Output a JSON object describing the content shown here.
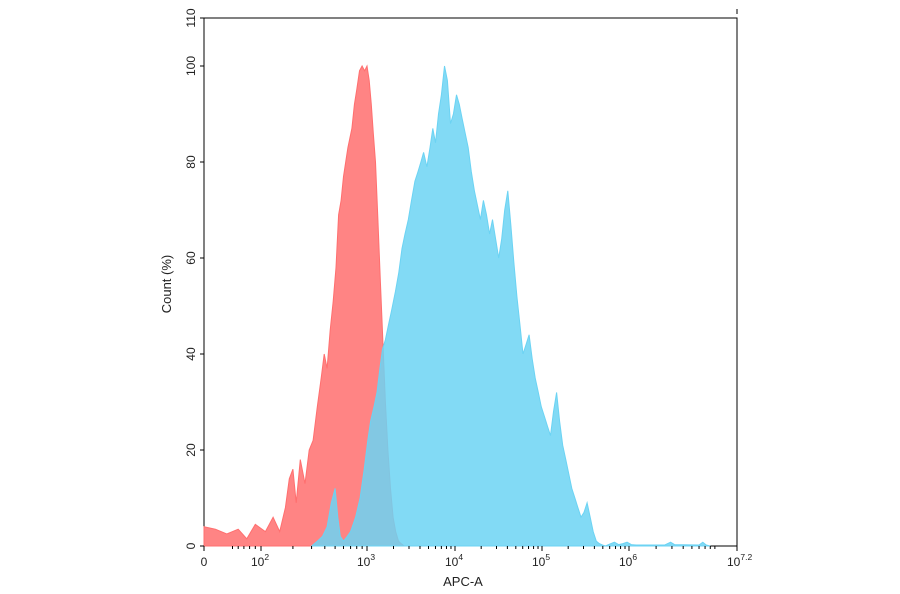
{
  "chart_data": {
    "type": "area",
    "title": "",
    "xlabel": "APC-A",
    "ylabel": "Count (%)",
    "x_scale": "biexponential",
    "xlim_labels": [
      "0",
      "10^7.2"
    ],
    "ylim": [
      0,
      110
    ],
    "grid": false,
    "legend": "none",
    "y_ticks": [
      0,
      20,
      40,
      60,
      80,
      100,
      110
    ],
    "x_ticks": [
      {
        "value": 0,
        "base": "0",
        "exp": ""
      },
      {
        "value": 100,
        "base": "10",
        "exp": "2"
      },
      {
        "value": 1000,
        "base": "10",
        "exp": "3"
      },
      {
        "value": 10000,
        "base": "10",
        "exp": "4"
      },
      {
        "value": 100000,
        "base": "10",
        "exp": "5"
      },
      {
        "value": 1000000,
        "base": "10",
        "exp": "6"
      },
      {
        "value": 15848932,
        "base": "10",
        "exp": "7.2"
      }
    ],
    "series": [
      {
        "color": "#ff6f6f",
        "opacity": 0.85,
        "points": [
          [
            0,
            4
          ],
          [
            20,
            3.5
          ],
          [
            40,
            2.5
          ],
          [
            60,
            3.5
          ],
          [
            75,
            1.5
          ],
          [
            90,
            4.5
          ],
          [
            110,
            3
          ],
          [
            130,
            6
          ],
          [
            150,
            3
          ],
          [
            170,
            8
          ],
          [
            185,
            14
          ],
          [
            200,
            16
          ],
          [
            215,
            9
          ],
          [
            235,
            18
          ],
          [
            260,
            13
          ],
          [
            285,
            20
          ],
          [
            310,
            22
          ],
          [
            340,
            29
          ],
          [
            370,
            35
          ],
          [
            395,
            40
          ],
          [
            420,
            37
          ],
          [
            450,
            45
          ],
          [
            480,
            51
          ],
          [
            510,
            58
          ],
          [
            540,
            69
          ],
          [
            570,
            72
          ],
          [
            600,
            77
          ],
          [
            630,
            80
          ],
          [
            660,
            83
          ],
          [
            690,
            85
          ],
          [
            720,
            87
          ],
          [
            760,
            92
          ],
          [
            800,
            95
          ],
          [
            850,
            99
          ],
          [
            900,
            100
          ],
          [
            950,
            99
          ],
          [
            1000,
            100
          ],
          [
            1060,
            97
          ],
          [
            1120,
            92
          ],
          [
            1180,
            86
          ],
          [
            1250,
            80
          ],
          [
            1330,
            68
          ],
          [
            1420,
            55
          ],
          [
            1520,
            42
          ],
          [
            1620,
            30
          ],
          [
            1730,
            20
          ],
          [
            1850,
            12
          ],
          [
            1980,
            6
          ],
          [
            2120,
            3
          ],
          [
            2280,
            1
          ],
          [
            2450,
            0.5
          ],
          [
            2650,
            0
          ]
        ]
      },
      {
        "color": "#6cd3f3",
        "opacity": 0.85,
        "points": [
          [
            300,
            0
          ],
          [
            340,
            1
          ],
          [
            380,
            2
          ],
          [
            420,
            4
          ],
          [
            460,
            9
          ],
          [
            500,
            12
          ],
          [
            530,
            6
          ],
          [
            560,
            2
          ],
          [
            600,
            1
          ],
          [
            650,
            2
          ],
          [
            700,
            3
          ],
          [
            780,
            6
          ],
          [
            860,
            10
          ],
          [
            940,
            16
          ],
          [
            1020,
            22
          ],
          [
            1100,
            26
          ],
          [
            1200,
            29
          ],
          [
            1300,
            32
          ],
          [
            1400,
            37
          ],
          [
            1500,
            41
          ],
          [
            1620,
            43
          ],
          [
            1750,
            46
          ],
          [
            1900,
            49
          ],
          [
            2100,
            53
          ],
          [
            2300,
            57
          ],
          [
            2500,
            62
          ],
          [
            2700,
            65
          ],
          [
            2950,
            68
          ],
          [
            3200,
            72
          ],
          [
            3500,
            76
          ],
          [
            3800,
            78
          ],
          [
            4100,
            80
          ],
          [
            4400,
            82
          ],
          [
            4800,
            79
          ],
          [
            5200,
            83
          ],
          [
            5600,
            87
          ],
          [
            6000,
            84
          ],
          [
            6500,
            90
          ],
          [
            7000,
            94
          ],
          [
            7600,
            100
          ],
          [
            8200,
            97
          ],
          [
            8900,
            88
          ],
          [
            9600,
            90
          ],
          [
            10400,
            94
          ],
          [
            11200,
            92
          ],
          [
            12100,
            89
          ],
          [
            13100,
            86
          ],
          [
            14200,
            83
          ],
          [
            15400,
            78
          ],
          [
            16700,
            74
          ],
          [
            18100,
            71
          ],
          [
            19600,
            68
          ],
          [
            21200,
            72
          ],
          [
            23000,
            69
          ],
          [
            25000,
            65
          ],
          [
            27000,
            68
          ],
          [
            29300,
            64
          ],
          [
            31800,
            60
          ],
          [
            34400,
            64
          ],
          [
            37300,
            70
          ],
          [
            40400,
            74
          ],
          [
            43800,
            67
          ],
          [
            47500,
            59
          ],
          [
            51500,
            52
          ],
          [
            55800,
            46
          ],
          [
            60500,
            40
          ],
          [
            65600,
            42
          ],
          [
            71100,
            44
          ],
          [
            77100,
            39
          ],
          [
            83600,
            35
          ],
          [
            90600,
            32
          ],
          [
            98200,
            29
          ],
          [
            106500,
            27
          ],
          [
            115500,
            25
          ],
          [
            125200,
            23
          ],
          [
            135700,
            28
          ],
          [
            147100,
            32
          ],
          [
            159500,
            26
          ],
          [
            172900,
            21
          ],
          [
            187500,
            18
          ],
          [
            203200,
            15
          ],
          [
            220300,
            12
          ],
          [
            238800,
            10
          ],
          [
            258900,
            8
          ],
          [
            280700,
            6
          ],
          [
            304300,
            7
          ],
          [
            329900,
            9
          ],
          [
            357700,
            6
          ],
          [
            387800,
            3
          ],
          [
            420400,
            1
          ],
          [
            455700,
            0.5
          ],
          [
            494100,
            0.2
          ],
          [
            535600,
            0
          ],
          [
            600000,
            0.4
          ],
          [
            680000,
            0.8
          ],
          [
            760000,
            0.3
          ],
          [
            850000,
            0.5
          ],
          [
            950000,
            0.8
          ],
          [
            1060000,
            0.3
          ],
          [
            1200000,
            0.2
          ],
          [
            2500000,
            0.2
          ],
          [
            2900000,
            0.8
          ],
          [
            3200000,
            0.3
          ],
          [
            6000000,
            0.2
          ],
          [
            6600000,
            0.8
          ],
          [
            7200000,
            0.2
          ],
          [
            8000000,
            0
          ]
        ]
      }
    ]
  }
}
